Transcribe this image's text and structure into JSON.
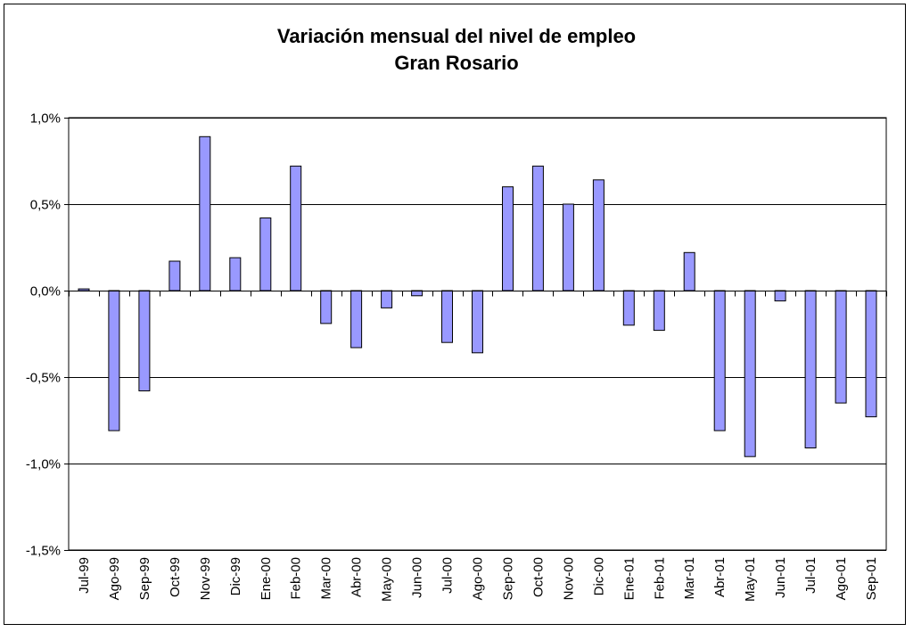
{
  "chart_data": {
    "type": "bar",
    "title": "Variación mensual del nivel de empleo",
    "subtitle": "Gran Rosario",
    "xlabel": "",
    "ylabel": "",
    "ylim": [
      -1.5,
      1.0
    ],
    "yticks": [
      1.0,
      0.5,
      0.0,
      -0.5,
      -1.0,
      -1.5
    ],
    "ytick_labels": [
      "1,0%",
      "0,5%",
      "0,0%",
      "-0,5%",
      "-1,0%",
      "-1,5%"
    ],
    "grid": true,
    "legend": "none",
    "bar_color": "#9999ff",
    "categories": [
      "Jul-99",
      "Ago-99",
      "Sep-99",
      "Oct-99",
      "Nov-99",
      "Dic-99",
      "Ene-00",
      "Feb-00",
      "Mar-00",
      "Abr-00",
      "May-00",
      "Jun-00",
      "Jul-00",
      "Ago-00",
      "Sep-00",
      "Oct-00",
      "Nov-00",
      "Dic-00",
      "Ene-01",
      "Feb-01",
      "Mar-01",
      "Abr-01",
      "May-01",
      "Jun-01",
      "Jul-01",
      "Ago-01",
      "Sep-01"
    ],
    "values": [
      0.01,
      -0.81,
      -0.58,
      0.17,
      0.89,
      0.19,
      0.42,
      0.72,
      -0.19,
      -0.33,
      -0.1,
      -0.03,
      -0.3,
      -0.36,
      0.6,
      0.72,
      0.5,
      0.64,
      -0.2,
      -0.23,
      0.22,
      -0.81,
      -0.96,
      -0.06,
      -0.91,
      -0.65,
      -0.73
    ]
  }
}
